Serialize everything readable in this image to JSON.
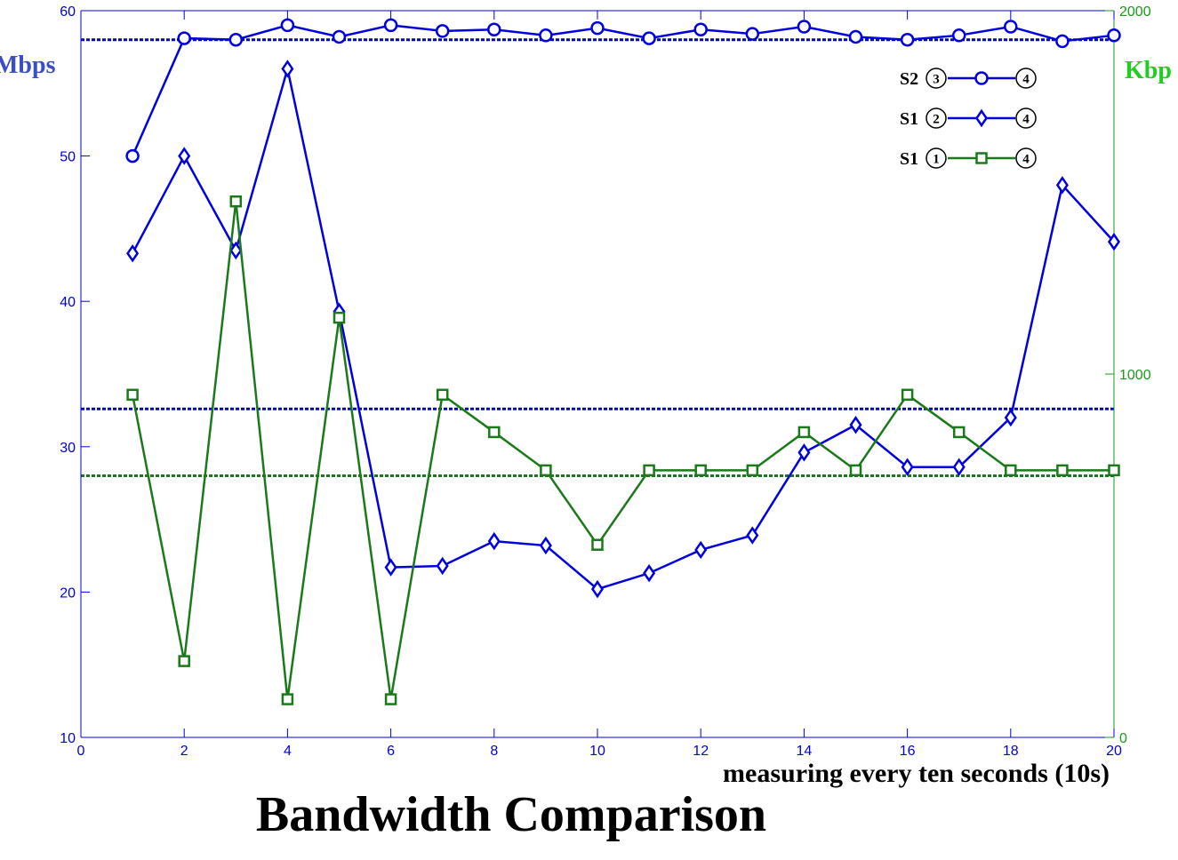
{
  "chart_data": {
    "type": "line",
    "title": "Bandwidth Comparison",
    "xlabel": "measuring every ten seconds (10s)",
    "ylabel_left": "Mbps",
    "ylabel_right": "Kbp",
    "xlim": [
      0,
      20
    ],
    "ylim_left": [
      10,
      60
    ],
    "ylim_right": [
      0,
      2000
    ],
    "x_ticks": [
      0,
      2,
      4,
      6,
      8,
      10,
      12,
      14,
      16,
      18,
      20
    ],
    "y_ticks_left": [
      10,
      20,
      30,
      40,
      50,
      60
    ],
    "y_ticks_right": [
      0,
      1000,
      2000
    ],
    "x": [
      1,
      2,
      3,
      4,
      5,
      6,
      7,
      8,
      9,
      10,
      11,
      12,
      13,
      14,
      15,
      16,
      17,
      18,
      19,
      20
    ],
    "series": [
      {
        "legend": {
          "prefix": "S2",
          "from": "3",
          "to": "4"
        },
        "axis": "left",
        "color": "#0000dd",
        "marker": "circle",
        "values": [
          50,
          58.1,
          58,
          59,
          58.2,
          59,
          58.6,
          58.7,
          58.3,
          58.8,
          58.1,
          58.7,
          58.4,
          58.9,
          58.2,
          58,
          58.3,
          58.9,
          57.9,
          58.3
        ]
      },
      {
        "legend": {
          "prefix": "S1",
          "from": "2",
          "to": "4"
        },
        "axis": "left",
        "color": "#0000dd",
        "marker": "diamond",
        "values": [
          43.3,
          50,
          43.5,
          56,
          39.3,
          21.7,
          21.8,
          23.5,
          23.2,
          20.2,
          21.3,
          22.9,
          23.9,
          29.6,
          31.5,
          28.6,
          28.6,
          32,
          48,
          44.1
        ]
      },
      {
        "legend": {
          "prefix": "S1",
          "from": "1",
          "to": "4"
        },
        "axis": "right",
        "color": "#1a7a1a",
        "marker": "square",
        "values": [
          943,
          210,
          1475,
          105,
          1155,
          105,
          943,
          840,
          735,
          530,
          735,
          735,
          735,
          840,
          735,
          943,
          840,
          735,
          735,
          735
        ]
      }
    ],
    "reference_lines": [
      {
        "axis": "left",
        "value": 58,
        "color": "#0000dd"
      },
      {
        "axis": "left",
        "value": 32.6,
        "color": "#0000dd"
      },
      {
        "axis": "left",
        "value": 28,
        "color": "#1a7a1a"
      }
    ],
    "colors": {
      "left_axis": "#0000dd",
      "right_axis": "#1a9a1a",
      "left_label": "#3b4fc4",
      "right_label": "#22cc22"
    },
    "legend_position": "top-right",
    "grid": false
  }
}
